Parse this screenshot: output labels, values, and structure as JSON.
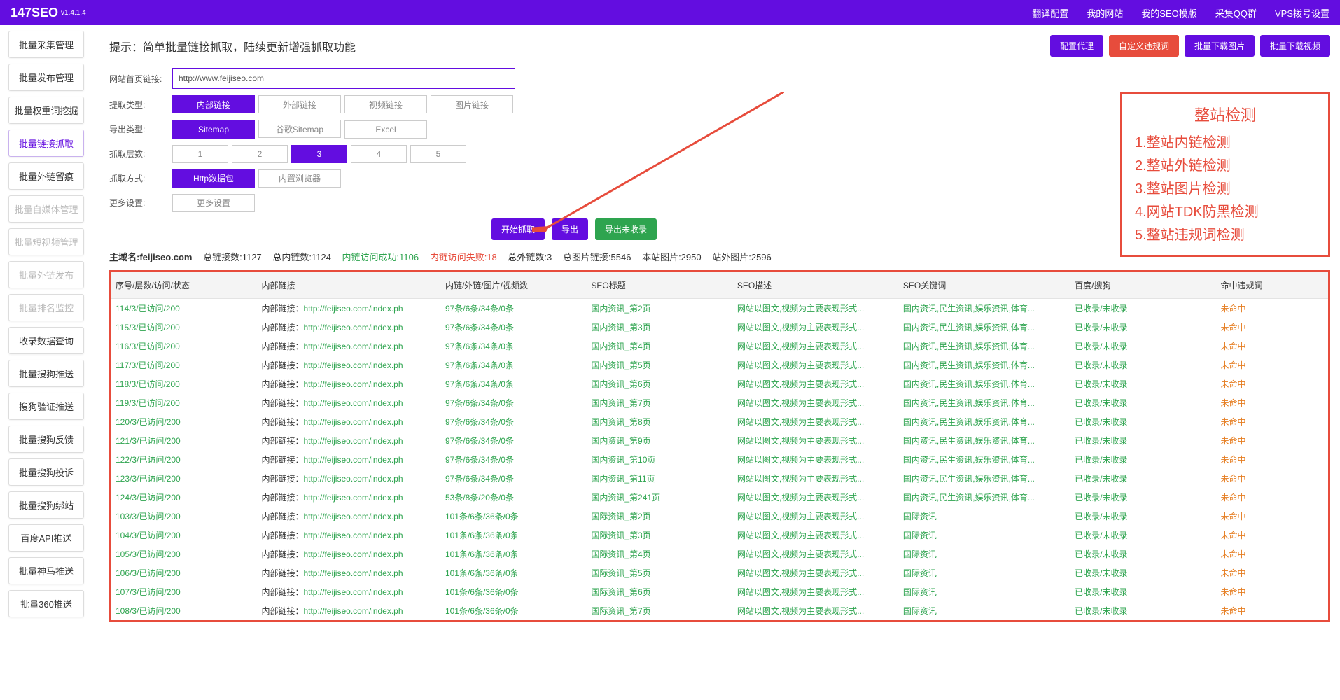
{
  "header": {
    "brand": "147SEO",
    "version": "v1.4.1.4",
    "nav": [
      "翻译配置",
      "我的网站",
      "我的SEO模版",
      "采集QQ群",
      "VPS拨号设置"
    ]
  },
  "sidebar": [
    {
      "label": "批量采集管理",
      "state": "normal"
    },
    {
      "label": "批量发布管理",
      "state": "normal"
    },
    {
      "label": "批量权重词挖掘",
      "state": "normal"
    },
    {
      "label": "批量链接抓取",
      "state": "active"
    },
    {
      "label": "批量外链留痕",
      "state": "normal"
    },
    {
      "label": "批量自媒体管理",
      "state": "disabled"
    },
    {
      "label": "批量短视频管理",
      "state": "disabled"
    },
    {
      "label": "批量外链发布",
      "state": "disabled"
    },
    {
      "label": "批量排名监控",
      "state": "disabled"
    },
    {
      "label": "收录数据查询",
      "state": "normal"
    },
    {
      "label": "批量搜狗推送",
      "state": "normal"
    },
    {
      "label": "搜狗验证推送",
      "state": "normal"
    },
    {
      "label": "批量搜狗反馈",
      "state": "normal"
    },
    {
      "label": "批量搜狗投诉",
      "state": "normal"
    },
    {
      "label": "批量搜狗绑站",
      "state": "normal"
    },
    {
      "label": "百度API推送",
      "state": "normal"
    },
    {
      "label": "批量神马推送",
      "state": "normal"
    },
    {
      "label": "批量360推送",
      "state": "normal"
    }
  ],
  "hint": "提示：简单批量链接抓取，陆续更新增强抓取功能",
  "action_buttons": {
    "proxy": "配置代理",
    "violation": "自定义违规词",
    "dl_images": "批量下载图片",
    "dl_videos": "批量下载视频"
  },
  "form": {
    "url_label": "网站首页链接:",
    "url_value": "http://www.feijiseo.com",
    "extract_type_label": "提取类型:",
    "extract_type_opts": [
      "内部链接",
      "外部链接",
      "视频链接",
      "图片链接"
    ],
    "extract_type_sel": 0,
    "export_type_label": "导出类型:",
    "export_type_opts": [
      "Sitemap",
      "谷歌Sitemap",
      "Excel"
    ],
    "export_type_sel": 0,
    "depth_label": "抓取层数:",
    "depth_opts": [
      "1",
      "2",
      "3",
      "4",
      "5"
    ],
    "depth_sel": 2,
    "method_label": "抓取方式:",
    "method_opts": [
      "Http数据包",
      "内置浏览器"
    ],
    "method_sel": 0,
    "more_label": "更多设置:",
    "more_btn": "更多设置"
  },
  "launch": {
    "start": "开始抓取",
    "export": "导出",
    "export_unindexed": "导出未收录"
  },
  "stats": {
    "domain_label": "主域名:",
    "domain": "feijiseo.com",
    "total_links": "总链接数:1127",
    "internal": "总内链数:1124",
    "success": "内链访问成功:1106",
    "fail": "内链访问失败:18",
    "external": "总外链数:3",
    "img_total": "总图片链接:5546",
    "img_local": "本站图片:2950",
    "img_ext": "站外图片:2596"
  },
  "columns": [
    "序号/层数/访问/状态",
    "内部链接",
    "内链/外链/图片/视频数",
    "SEO标题",
    "SEO描述",
    "SEO关键词",
    "百度/搜狗",
    "命中违规词"
  ],
  "rows": [
    {
      "id": "114/3/已访问/200",
      "link": "http://feijiseo.com/index.ph",
      "nums": "97条/6条/34条/0条",
      "title": "国内资讯_第2页",
      "desc": "网站以图文,视频为主要表现形式...",
      "kw": "国内资讯,民生资讯,娱乐资讯,体育...",
      "idx": "已收录/未收录",
      "miss": "未命中"
    },
    {
      "id": "115/3/已访问/200",
      "link": "http://feijiseo.com/index.ph",
      "nums": "97条/6条/34条/0条",
      "title": "国内资讯_第3页",
      "desc": "网站以图文,视频为主要表现形式...",
      "kw": "国内资讯,民生资讯,娱乐资讯,体育...",
      "idx": "已收录/未收录",
      "miss": "未命中"
    },
    {
      "id": "116/3/已访问/200",
      "link": "http://feijiseo.com/index.ph",
      "nums": "97条/6条/34条/0条",
      "title": "国内资讯_第4页",
      "desc": "网站以图文,视频为主要表现形式...",
      "kw": "国内资讯,民生资讯,娱乐资讯,体育...",
      "idx": "已收录/未收录",
      "miss": "未命中"
    },
    {
      "id": "117/3/已访问/200",
      "link": "http://feijiseo.com/index.ph",
      "nums": "97条/6条/34条/0条",
      "title": "国内资讯_第5页",
      "desc": "网站以图文,视频为主要表现形式...",
      "kw": "国内资讯,民生资讯,娱乐资讯,体育...",
      "idx": "已收录/未收录",
      "miss": "未命中"
    },
    {
      "id": "118/3/已访问/200",
      "link": "http://feijiseo.com/index.ph",
      "nums": "97条/6条/34条/0条",
      "title": "国内资讯_第6页",
      "desc": "网站以图文,视频为主要表现形式...",
      "kw": "国内资讯,民生资讯,娱乐资讯,体育...",
      "idx": "已收录/未收录",
      "miss": "未命中"
    },
    {
      "id": "119/3/已访问/200",
      "link": "http://feijiseo.com/index.ph",
      "nums": "97条/6条/34条/0条",
      "title": "国内资讯_第7页",
      "desc": "网站以图文,视频为主要表现形式...",
      "kw": "国内资讯,民生资讯,娱乐资讯,体育...",
      "idx": "已收录/未收录",
      "miss": "未命中"
    },
    {
      "id": "120/3/已访问/200",
      "link": "http://feijiseo.com/index.ph",
      "nums": "97条/6条/34条/0条",
      "title": "国内资讯_第8页",
      "desc": "网站以图文,视频为主要表现形式...",
      "kw": "国内资讯,民生资讯,娱乐资讯,体育...",
      "idx": "已收录/未收录",
      "miss": "未命中"
    },
    {
      "id": "121/3/已访问/200",
      "link": "http://feijiseo.com/index.ph",
      "nums": "97条/6条/34条/0条",
      "title": "国内资讯_第9页",
      "desc": "网站以图文,视频为主要表现形式...",
      "kw": "国内资讯,民生资讯,娱乐资讯,体育...",
      "idx": "已收录/未收录",
      "miss": "未命中"
    },
    {
      "id": "122/3/已访问/200",
      "link": "http://feijiseo.com/index.ph",
      "nums": "97条/6条/34条/0条",
      "title": "国内资讯_第10页",
      "desc": "网站以图文,视频为主要表现形式...",
      "kw": "国内资讯,民生资讯,娱乐资讯,体育...",
      "idx": "已收录/未收录",
      "miss": "未命中"
    },
    {
      "id": "123/3/已访问/200",
      "link": "http://feijiseo.com/index.ph",
      "nums": "97条/6条/34条/0条",
      "title": "国内资讯_第11页",
      "desc": "网站以图文,视频为主要表现形式...",
      "kw": "国内资讯,民生资讯,娱乐资讯,体育...",
      "idx": "已收录/未收录",
      "miss": "未命中"
    },
    {
      "id": "124/3/已访问/200",
      "link": "http://feijiseo.com/index.ph",
      "nums": "53条/8条/20条/0条",
      "title": "国内资讯_第241页",
      "desc": "网站以图文,视频为主要表现形式...",
      "kw": "国内资讯,民生资讯,娱乐资讯,体育...",
      "idx": "已收录/未收录",
      "miss": "未命中"
    },
    {
      "id": "103/3/已访问/200",
      "link": "http://feijiseo.com/index.ph",
      "nums": "101条/6条/36条/0条",
      "title": "国际资讯_第2页",
      "desc": "网站以图文,视频为主要表现形式...",
      "kw": "国际资讯",
      "idx": "已收录/未收录",
      "miss": "未命中"
    },
    {
      "id": "104/3/已访问/200",
      "link": "http://feijiseo.com/index.ph",
      "nums": "101条/6条/36条/0条",
      "title": "国际资讯_第3页",
      "desc": "网站以图文,视频为主要表现形式...",
      "kw": "国际资讯",
      "idx": "已收录/未收录",
      "miss": "未命中"
    },
    {
      "id": "105/3/已访问/200",
      "link": "http://feijiseo.com/index.ph",
      "nums": "101条/6条/36条/0条",
      "title": "国际资讯_第4页",
      "desc": "网站以图文,视频为主要表现形式...",
      "kw": "国际资讯",
      "idx": "已收录/未收录",
      "miss": "未命中"
    },
    {
      "id": "106/3/已访问/200",
      "link": "http://feijiseo.com/index.ph",
      "nums": "101条/6条/36条/0条",
      "title": "国际资讯_第5页",
      "desc": "网站以图文,视频为主要表现形式...",
      "kw": "国际资讯",
      "idx": "已收录/未收录",
      "miss": "未命中"
    },
    {
      "id": "107/3/已访问/200",
      "link": "http://feijiseo.com/index.ph",
      "nums": "101条/6条/36条/0条",
      "title": "国际资讯_第6页",
      "desc": "网站以图文,视频为主要表现形式...",
      "kw": "国际资讯",
      "idx": "已收录/未收录",
      "miss": "未命中"
    },
    {
      "id": "108/3/已访问/200",
      "link": "http://feijiseo.com/index.ph",
      "nums": "101条/6条/36条/0条",
      "title": "国际资讯_第7页",
      "desc": "网站以图文,视频为主要表现形式...",
      "kw": "国际资讯",
      "idx": "已收录/未收录",
      "miss": "未命中"
    }
  ],
  "link_prefix": "内部链接：",
  "info_box": {
    "title": "整站检测",
    "lines": [
      "1.整站内链检测",
      "2.整站外链检测",
      "3.整站图片检测",
      "4.网站TDK防黑检测",
      "5.整站违规词检测"
    ]
  }
}
